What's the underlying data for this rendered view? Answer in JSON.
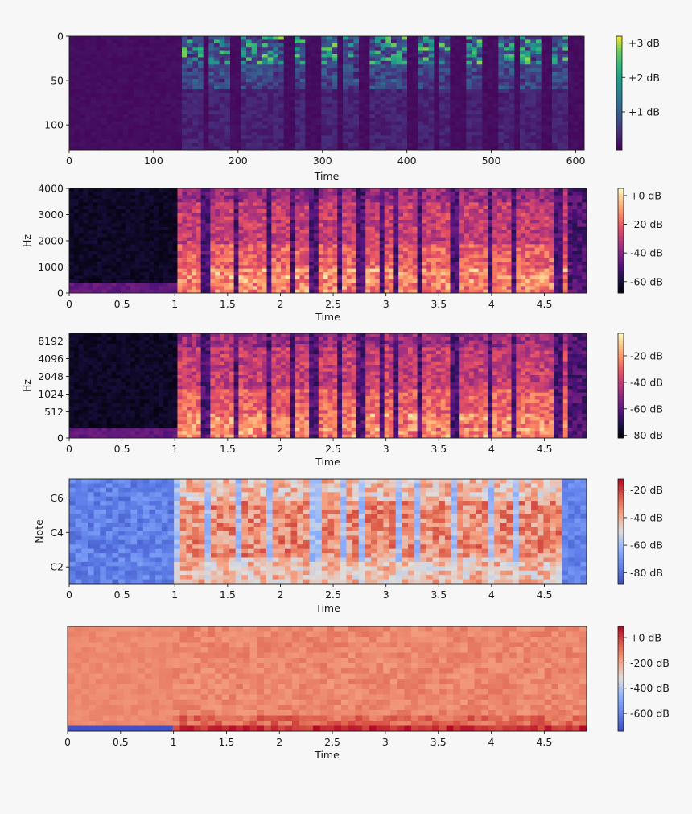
{
  "chart_data": [
    {
      "type": "heatmap",
      "name": "mel-feature-map",
      "colormap": "viridis",
      "xlabel": "Time",
      "ylabel": "",
      "xlim": [
        0,
        610
      ],
      "ylim": [
        128,
        0
      ],
      "x_ticks": [
        "0",
        "100",
        "200",
        "300",
        "400",
        "500",
        "600"
      ],
      "x_tick_values": [
        0,
        100,
        200,
        300,
        400,
        500,
        600
      ],
      "y_ticks": [
        "0",
        "50",
        "100"
      ],
      "y_tick_values": [
        0,
        50,
        100
      ],
      "colorbar": {
        "ticks": [
          "+3 dB",
          "+2 dB",
          "+1 dB"
        ],
        "tick_values": [
          3,
          2,
          1
        ],
        "range": [
          -0.1,
          3.2
        ]
      },
      "segments": [
        [
          0.22,
          0.26
        ],
        [
          0.27,
          0.31
        ],
        [
          0.33,
          0.37
        ],
        [
          0.38,
          0.42
        ],
        [
          0.44,
          0.46
        ],
        [
          0.49,
          0.52
        ],
        [
          0.53,
          0.56
        ],
        [
          0.58,
          0.62
        ],
        [
          0.63,
          0.66
        ],
        [
          0.68,
          0.71
        ],
        [
          0.72,
          0.74
        ],
        [
          0.77,
          0.8
        ],
        [
          0.83,
          0.86
        ],
        [
          0.88,
          0.92
        ],
        [
          0.94,
          0.97
        ]
      ]
    },
    {
      "type": "heatmap",
      "name": "linear-spectrogram",
      "colormap": "magma",
      "xlabel": "Time",
      "ylabel": "Hz",
      "xlim": [
        0,
        4.9
      ],
      "ylim": [
        0,
        4000
      ],
      "x_ticks": [
        "0",
        "0.5",
        "1",
        "1.5",
        "2",
        "2.5",
        "3",
        "3.5",
        "4",
        "4.5"
      ],
      "x_tick_values": [
        0,
        0.5,
        1,
        1.5,
        2,
        2.5,
        3,
        3.5,
        4,
        4.5
      ],
      "y_ticks": [
        "0",
        "1000",
        "2000",
        "3000",
        "4000"
      ],
      "y_tick_values": [
        0,
        1000,
        2000,
        3000,
        4000
      ],
      "colorbar": {
        "ticks": [
          "+0 dB",
          "-20 dB",
          "-40 dB",
          "-60 dB"
        ],
        "tick_values": [
          0,
          -20,
          -40,
          -60
        ],
        "range": [
          -68,
          5
        ]
      },
      "segments": [
        [
          1.03,
          1.26
        ],
        [
          1.33,
          1.55
        ],
        [
          1.62,
          1.86
        ],
        [
          1.9,
          2.1
        ],
        [
          2.12,
          2.25
        ],
        [
          2.38,
          2.56
        ],
        [
          2.6,
          2.72
        ],
        [
          2.8,
          2.95
        ],
        [
          3.0,
          3.08
        ],
        [
          3.13,
          3.28
        ],
        [
          3.35,
          3.42
        ],
        [
          3.45,
          3.62
        ],
        [
          3.7,
          3.95
        ],
        [
          4.0,
          4.2
        ],
        [
          4.25,
          4.6
        ],
        [
          4.67,
          4.72
        ]
      ]
    },
    {
      "type": "heatmap",
      "name": "log-spectrogram",
      "colormap": "magma",
      "xlabel": "Time",
      "ylabel": "Hz",
      "xlim": [
        0,
        4.9
      ],
      "ylim": [
        0,
        11025
      ],
      "y_scale": "log",
      "x_ticks": [
        "0",
        "0.5",
        "1",
        "1.5",
        "2",
        "2.5",
        "3",
        "3.5",
        "4",
        "4.5"
      ],
      "x_tick_values": [
        0,
        0.5,
        1,
        1.5,
        2,
        2.5,
        3,
        3.5,
        4,
        4.5
      ],
      "y_ticks": [
        "0",
        "512",
        "1024",
        "2048",
        "4096",
        "8192"
      ],
      "y_tick_values": [
        0,
        512,
        1024,
        2048,
        4096,
        8192
      ],
      "colorbar": {
        "ticks": [
          "-20 dB",
          "-40 dB",
          "-60 dB",
          "-80 dB"
        ],
        "tick_values": [
          -20,
          -40,
          -60,
          -80
        ],
        "range": [
          -82,
          -3
        ]
      },
      "segments": [
        [
          1.03,
          1.26
        ],
        [
          1.33,
          1.55
        ],
        [
          1.62,
          1.86
        ],
        [
          1.9,
          2.1
        ],
        [
          2.12,
          2.25
        ],
        [
          2.38,
          2.56
        ],
        [
          2.6,
          2.72
        ],
        [
          2.8,
          2.95
        ],
        [
          3.0,
          3.08
        ],
        [
          3.13,
          3.28
        ],
        [
          3.35,
          3.42
        ],
        [
          3.45,
          3.62
        ],
        [
          3.7,
          3.95
        ],
        [
          4.0,
          4.2
        ],
        [
          4.25,
          4.6
        ],
        [
          4.67,
          4.72
        ]
      ]
    },
    {
      "type": "heatmap",
      "name": "constant-q-chromagram",
      "colormap": "coolwarm",
      "xlabel": "Time",
      "ylabel": "Note",
      "xlim": [
        0,
        4.9
      ],
      "x_ticks": [
        "0",
        "0.5",
        "1",
        "1.5",
        "2",
        "2.5",
        "3",
        "3.5",
        "4",
        "4.5"
      ],
      "x_tick_values": [
        0,
        0.5,
        1,
        1.5,
        2,
        2.5,
        3,
        3.5,
        4,
        4.5
      ],
      "y_ticks": [
        "C2",
        "C4",
        "C6"
      ],
      "y_tick_fractions": [
        0.16,
        0.49,
        0.82
      ],
      "colorbar": {
        "ticks": [
          "-20 dB",
          "-40 dB",
          "-60 dB",
          "-80 dB"
        ],
        "tick_values": [
          -20,
          -40,
          -60,
          -80
        ],
        "range": [
          -88,
          -12
        ]
      },
      "segments": [
        [
          1.03,
          1.26
        ],
        [
          1.33,
          1.55
        ],
        [
          1.62,
          1.86
        ],
        [
          1.9,
          2.25
        ],
        [
          2.38,
          2.56
        ],
        [
          2.6,
          2.72
        ],
        [
          2.8,
          2.95
        ],
        [
          3.0,
          3.08
        ],
        [
          3.13,
          3.28
        ],
        [
          3.35,
          3.42
        ],
        [
          3.45,
          3.62
        ],
        [
          3.7,
          3.95
        ],
        [
          4.0,
          4.2
        ],
        [
          4.25,
          4.65
        ]
      ]
    },
    {
      "type": "heatmap",
      "name": "mfcc",
      "colormap": "coolwarm",
      "xlabel": "Time",
      "ylabel": "",
      "xlim": [
        0,
        4.9
      ],
      "x_ticks": [
        "0",
        "0.5",
        "1",
        "1.5",
        "2",
        "2.5",
        "3",
        "3.5",
        "4",
        "4.5"
      ],
      "x_tick_values": [
        0,
        0.5,
        1,
        1.5,
        2,
        2.5,
        3,
        3.5,
        4,
        4.5
      ],
      "y_ticks": [],
      "colorbar": {
        "ticks": [
          "+0 dB",
          "-200 dB",
          "-400 dB",
          "-600 dB"
        ],
        "tick_values": [
          0,
          -200,
          -400,
          -600
        ],
        "range": [
          -740,
          90
        ]
      },
      "segments": [
        [
          1.0,
          4.9
        ]
      ]
    }
  ]
}
